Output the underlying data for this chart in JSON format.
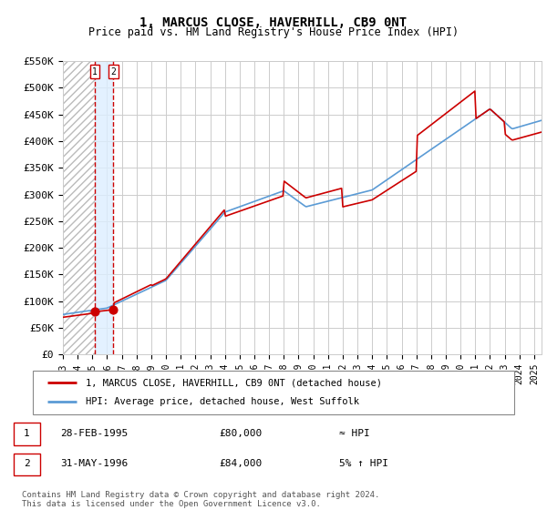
{
  "title": "1, MARCUS CLOSE, HAVERHILL, CB9 0NT",
  "subtitle": "Price paid vs. HM Land Registry's House Price Index (HPI)",
  "legend_line1": "1, MARCUS CLOSE, HAVERHILL, CB9 0NT (detached house)",
  "legend_line2": "HPI: Average price, detached house, West Suffolk",
  "footer": "Contains HM Land Registry data © Crown copyright and database right 2024.\nThis data is licensed under the Open Government Licence v3.0.",
  "transactions": [
    {
      "num": 1,
      "date": "28-FEB-1995",
      "price": "£80,000",
      "vs_hpi": "≈ HPI"
    },
    {
      "num": 2,
      "date": "31-MAY-1996",
      "price": "£84,000",
      "vs_hpi": "5% ↑ HPI"
    }
  ],
  "ylim": [
    0,
    550000
  ],
  "yticks": [
    0,
    50000,
    100000,
    150000,
    200000,
    250000,
    300000,
    350000,
    400000,
    450000,
    500000,
    550000
  ],
  "ytick_labels": [
    "£0",
    "£50K",
    "£100K",
    "£150K",
    "£200K",
    "£250K",
    "£300K",
    "£350K",
    "£400K",
    "£450K",
    "£500K",
    "£550K"
  ],
  "hatch_end_year": 1995.16,
  "transaction1_year": 1995.16,
  "transaction2_year": 1996.42,
  "red_color": "#cc0000",
  "blue_color": "#5b9bd5",
  "hatch_color": "#bbbbbb",
  "shade_color": "#ddeeff",
  "background_color": "#ffffff",
  "grid_color": "#cccccc",
  "xlim_start": 1993.0,
  "xlim_end": 2025.5
}
